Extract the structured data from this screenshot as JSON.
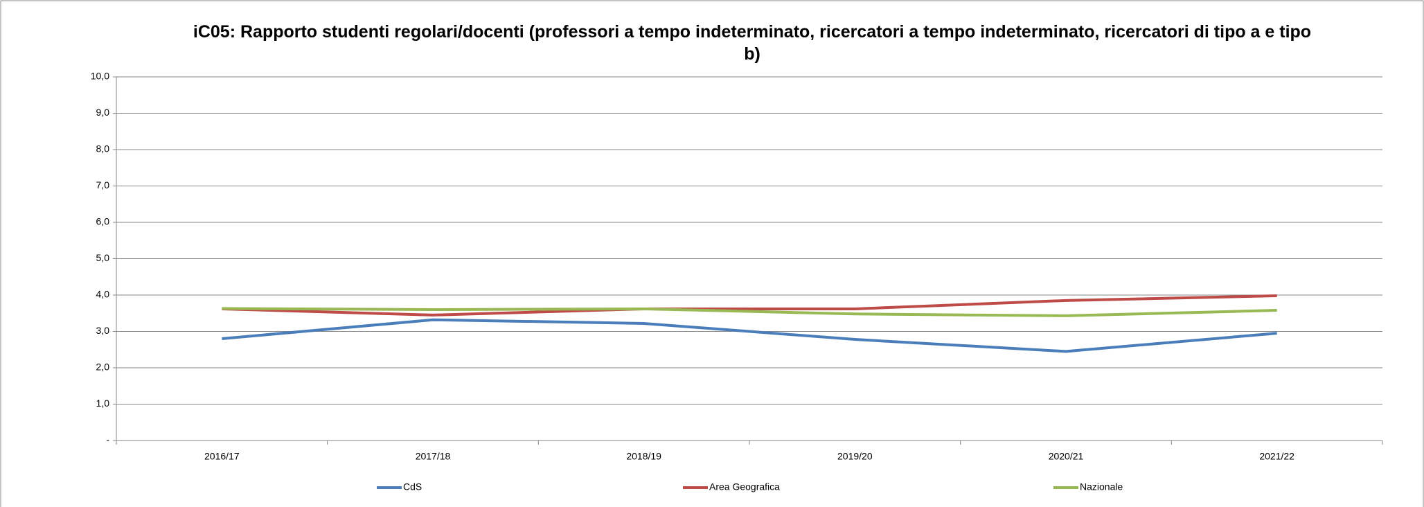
{
  "chart_data": {
    "type": "line",
    "title": "iC05: Rapporto studenti regolari/docenti (professori a tempo indeterminato, ricercatori a tempo indeterminato, ricercatori di tipo  a e tipo b)",
    "categories": [
      "2016/17",
      "2017/18",
      "2018/19",
      "2019/20",
      "2020/21",
      "2021/22"
    ],
    "series": [
      {
        "name": "CdS",
        "color": "#4a7ebb",
        "values": [
          2.8,
          3.32,
          3.22,
          2.78,
          2.45,
          2.95
        ]
      },
      {
        "name": "Area Geografica",
        "color": "#be4b48",
        "values": [
          3.62,
          3.45,
          3.62,
          3.62,
          3.85,
          3.98
        ]
      },
      {
        "name": "Nazionale",
        "color": "#98b954",
        "values": [
          3.63,
          3.6,
          3.62,
          3.48,
          3.43,
          3.58
        ]
      }
    ],
    "ylim": [
      0,
      10
    ],
    "yticks": [
      {
        "value": 0,
        "label": "-"
      },
      {
        "value": 1,
        "label": "1,0"
      },
      {
        "value": 2,
        "label": "2,0"
      },
      {
        "value": 3,
        "label": "3,0"
      },
      {
        "value": 4,
        "label": "4,0"
      },
      {
        "value": 5,
        "label": "5,0"
      },
      {
        "value": 6,
        "label": "6,0"
      },
      {
        "value": 7,
        "label": "7,0"
      },
      {
        "value": 8,
        "label": "8,0"
      },
      {
        "value": 9,
        "label": "9,0"
      },
      {
        "value": 10,
        "label": "10,0"
      }
    ],
    "grid": true,
    "legend": "bottom"
  }
}
